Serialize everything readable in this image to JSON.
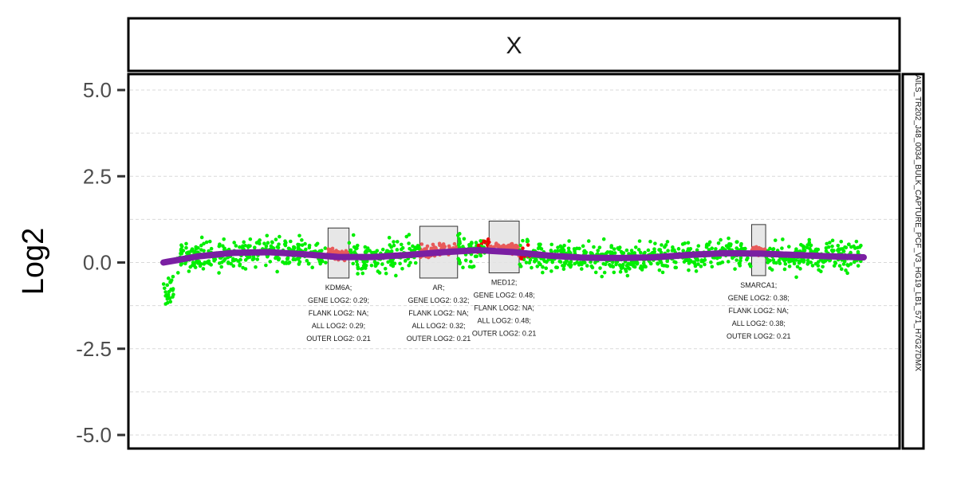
{
  "chart_data": {
    "type": "scatter",
    "facet_label": "X",
    "sample_label": "AILS_TR202_J48_0034_BULK_CAPTURE_PCF_V3_HG19_LB1_571_H7G27DMX",
    "ylabel": "Log2",
    "xlabel": "",
    "ylim": [
      -5.4,
      5.5
    ],
    "xlim": [
      0,
      100
    ],
    "y_ticks": [
      {
        "value": 5.0,
        "label": "5.0"
      },
      {
        "value": 2.5,
        "label": "2.5"
      },
      {
        "value": 0.0,
        "label": "0.0"
      },
      {
        "value": -2.5,
        "label": "-2.5"
      },
      {
        "value": -5.0,
        "label": "-5.0"
      }
    ],
    "grid": true,
    "colors": {
      "points": "#00ee00",
      "gene_points": "#e85a5a",
      "flank_points": "#ee0000",
      "smooth_line": "#7a1fa2",
      "gene_box": "#e3e3e3",
      "grid": "#d9d9d9"
    },
    "smooth_line": {
      "x": [
        0,
        5,
        10,
        15,
        20,
        25,
        30,
        35,
        40,
        45,
        50,
        55,
        60,
        65,
        70,
        75,
        80,
        85,
        90,
        95,
        100
      ],
      "y": [
        0.0,
        0.18,
        0.28,
        0.3,
        0.24,
        0.16,
        0.16,
        0.22,
        0.3,
        0.36,
        0.3,
        0.2,
        0.14,
        0.13,
        0.15,
        0.22,
        0.27,
        0.26,
        0.22,
        0.18,
        0.15
      ]
    },
    "genes": [
      {
        "name": "KDM6A",
        "x_start": 23.5,
        "x_end": 26.5,
        "y_low": -0.45,
        "y_high": 1.0,
        "lines": [
          "KDM6A;",
          "GENE LOG2: 0.29;",
          "FLANK LOG2: NA;",
          "ALL LOG2: 0.29;",
          "OUTER LOG2: 0.21"
        ]
      },
      {
        "name": "AR",
        "x_start": 36.6,
        "x_end": 42.0,
        "y_low": -0.45,
        "y_high": 1.05,
        "lines": [
          "AR;",
          "GENE LOG2: 0.32;",
          "FLANK LOG2: NA;",
          "ALL LOG2: 0.32;",
          "OUTER LOG2: 0.21"
        ]
      },
      {
        "name": "MED12",
        "x_start": 46.5,
        "x_end": 50.8,
        "y_low": -0.3,
        "y_high": 1.2,
        "lines": [
          "MED12;",
          "GENE LOG2: 0.48;",
          "FLANK LOG2: NA;",
          "ALL LOG2: 0.48;",
          "OUTER LOG2: 0.21"
        ]
      },
      {
        "name": "SMARCA1",
        "x_start": 84.0,
        "x_end": 86.0,
        "y_low": -0.38,
        "y_high": 1.1,
        "lines": [
          "SMARCA1;",
          "GENE LOG2: 0.38;",
          "FLANK LOG2: NA;",
          "ALL LOG2: 0.38;",
          "OUTER LOG2: 0.21"
        ]
      }
    ]
  }
}
